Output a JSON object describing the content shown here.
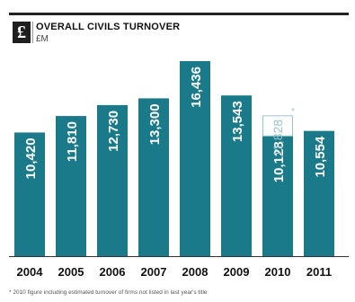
{
  "header": {
    "logo_glyph": "£",
    "title": "OVERALL CIVILS TURNOVER",
    "unit": "£M"
  },
  "footnote": "* 2010 figure including estimated turnover of firms not listed in last year's title",
  "chart_data": {
    "type": "bar",
    "title": "OVERALL CIVILS TURNOVER",
    "ylabel": "£M",
    "categories": [
      "2004",
      "2005",
      "2006",
      "2007",
      "2008",
      "2009",
      "2010",
      "2011"
    ],
    "values": [
      10420,
      11810,
      12730,
      13300,
      16436,
      13543,
      10128,
      10554
    ],
    "value_labels": [
      "10,420",
      "11,810",
      "12,730",
      "13,300",
      "16,436",
      "13,543",
      "10,128",
      "10,554"
    ],
    "annotation": {
      "category": "2010",
      "value": 11828,
      "label": "11,828",
      "marker": "*"
    },
    "bar_color": "#1a7a8a",
    "annotation_color": "#9fc3cc",
    "ylim": [
      0,
      16436
    ],
    "grid": false,
    "legend": "none"
  }
}
